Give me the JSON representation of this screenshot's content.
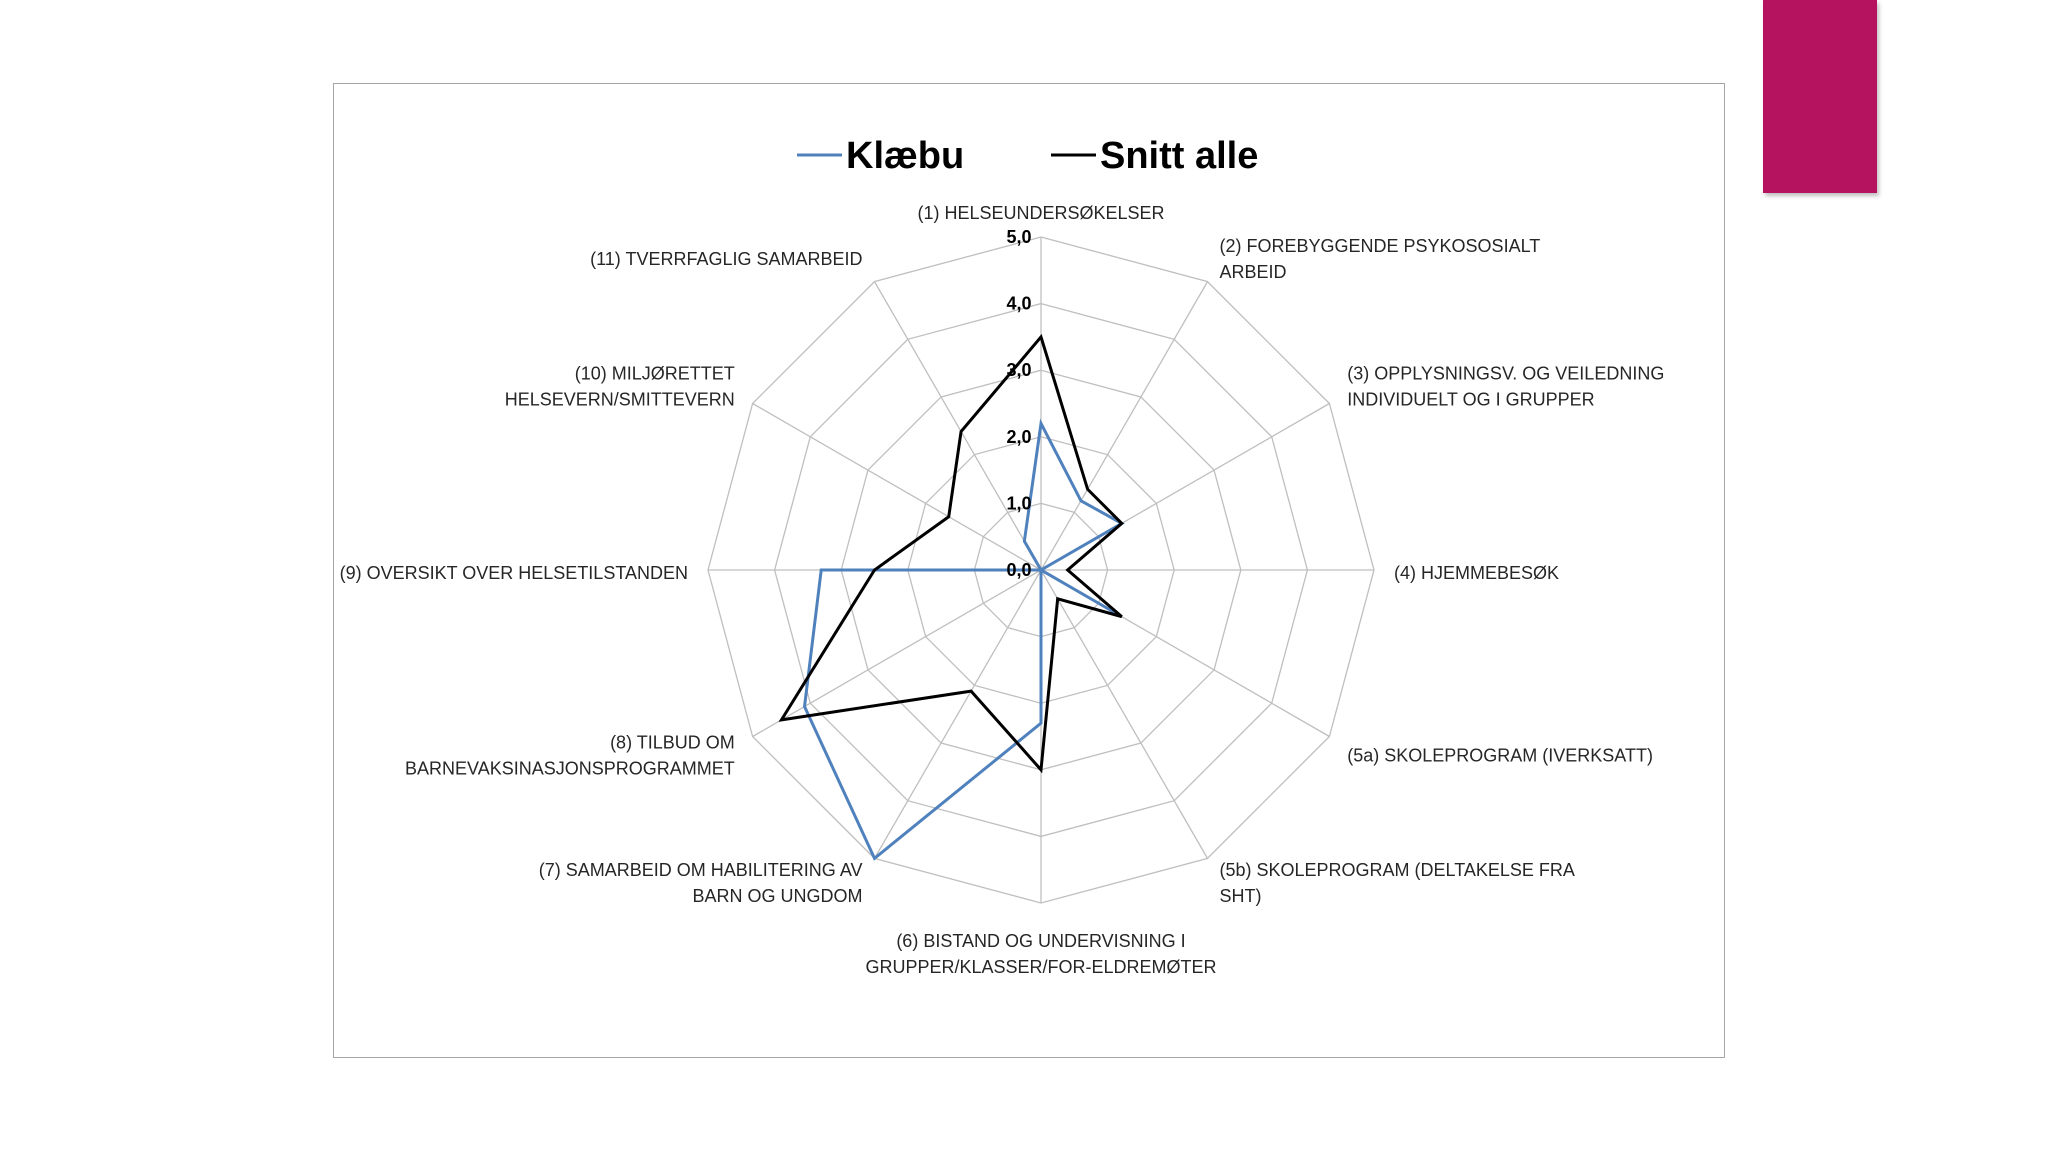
{
  "colors": {
    "accent": "#b5135f",
    "grid": "#bfbfbf",
    "frame": "#a6a6a6"
  },
  "chart_data": {
    "type": "radar",
    "title": "",
    "legend_position": "top",
    "grid": true,
    "rlim": [
      0,
      5
    ],
    "ticks": [
      "0,0",
      "1,0",
      "2,0",
      "3,0",
      "4,0",
      "5,0"
    ],
    "categories": [
      "(1) HELSEUNDERSØKELSER",
      "(2) FOREBYGGENDE PSYKOSOSIALT ARBEID",
      "(3) OPPLYSNINGSV. OG VEILEDNING INDIVIDUELT OG I GRUPPER",
      "(4) HJEMMEBESØK",
      "(5a) SKOLEPROGRAM (IVERKSATT)",
      "(5b) SKOLEPROGRAM (DELTAKELSE FRA SHT)",
      "(6) BISTAND OG UNDERVISNING I GRUPPER/KLASSER/FOR-ELDREMØTER",
      "(7) SAMARBEID OM HABILITERING AV BARN OG UNGDOM",
      "(8) TILBUD OM BARNEVAKSINASJONSPROGRAMMET",
      "(9) OVERSIKT OVER HELSETILSTANDEN",
      "(10) MILJØRETTET HELSEVERN/SMITTEVERN",
      "(11) TVERRFAGLIG SAMARBEID"
    ],
    "category_lines": [
      [
        "(1) HELSEUNDERSØKELSER"
      ],
      [
        "(2) FOREBYGGENDE PSYKOSOSIALT",
        "ARBEID"
      ],
      [
        "(3) OPPLYSNINGSV. OG VEILEDNING",
        "INDIVIDUELT OG I GRUPPER"
      ],
      [
        "(4) HJEMMEBESØK"
      ],
      [
        "(5a) SKOLEPROGRAM (IVERKSATT)"
      ],
      [
        "(5b) SKOLEPROGRAM (DELTAKELSE FRA",
        "SHT)"
      ],
      [
        "(6) BISTAND OG UNDERVISNING I",
        "GRUPPER/KLASSER/FOR-ELDREMØTER"
      ],
      [
        "(7) SAMARBEID OM HABILITERING AV",
        "BARN OG UNGDOM"
      ],
      [
        "(8) TILBUD OM",
        "BARNEVAKSINASJONSPROGRAMMET"
      ],
      [
        "(9) OVERSIKT OVER HELSETILSTANDEN"
      ],
      [
        "(10) MILJØRETTET",
        "HELSEVERN/SMITTEVERN"
      ],
      [
        "(11) TVERRFAGLIG SAMARBEID"
      ]
    ],
    "series": [
      {
        "name": "Klæbu",
        "color": "#4f81bd",
        "values": [
          2.2,
          1.2,
          1.4,
          0.0,
          1.4,
          0.0,
          2.3,
          5.0,
          4.1,
          3.3,
          0.0,
          0.5
        ]
      },
      {
        "name": "Snitt alle",
        "color": "#000000",
        "values": [
          3.5,
          1.4,
          1.4,
          0.4,
          1.4,
          0.5,
          3.0,
          2.1,
          4.5,
          2.5,
          1.6,
          2.4
        ]
      }
    ]
  }
}
